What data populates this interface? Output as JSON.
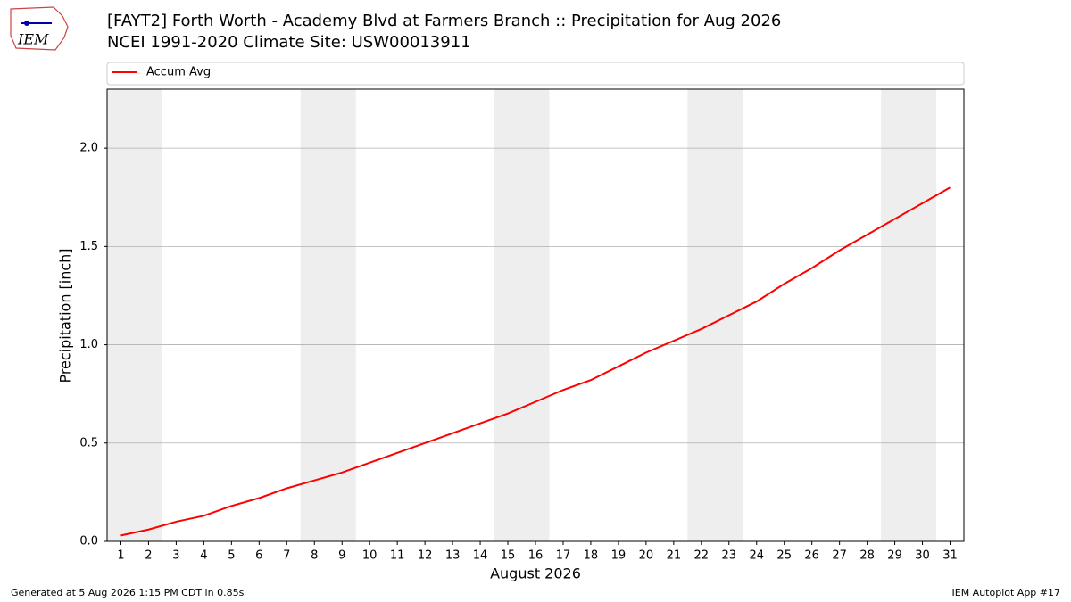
{
  "logo_text": "IEM",
  "footer_left": "Generated at 5 Aug 2026 1:15 PM CDT in 0.85s",
  "footer_right": "IEM Autoplot App #17",
  "chart_data": {
    "type": "line",
    "title": "[FAYT2] Forth Worth - Academy Blvd at Farmers Branch :: Precipitation for Aug 2026",
    "subtitle": "NCEI 1991-2020 Climate Site: USW00013911",
    "x_label": "August 2026",
    "y_label": "Precipitation [inch]",
    "x": [
      1,
      2,
      3,
      4,
      5,
      6,
      7,
      8,
      9,
      10,
      11,
      12,
      13,
      14,
      15,
      16,
      17,
      18,
      19,
      20,
      21,
      22,
      23,
      24,
      25,
      26,
      27,
      28,
      29,
      30,
      31
    ],
    "series": [
      {
        "name": "Accum Avg",
        "color": "#ff0000",
        "values": [
          0.03,
          0.06,
          0.1,
          0.13,
          0.18,
          0.22,
          0.27,
          0.31,
          0.35,
          0.4,
          0.45,
          0.5,
          0.55,
          0.6,
          0.65,
          0.71,
          0.77,
          0.82,
          0.89,
          0.96,
          1.02,
          1.08,
          1.15,
          1.22,
          1.31,
          1.39,
          1.48,
          1.56,
          1.64,
          1.72,
          1.8
        ]
      }
    ],
    "shaded_spans": [
      [
        0.5,
        2.5
      ],
      [
        7.5,
        9.5
      ],
      [
        14.5,
        16.5
      ],
      [
        21.5,
        23.5
      ],
      [
        28.5,
        30.5
      ]
    ],
    "shade_color": "#eeeeee",
    "xlim": [
      0.5,
      31.5
    ],
    "xticks": [
      1,
      2,
      3,
      4,
      5,
      6,
      7,
      8,
      9,
      10,
      11,
      12,
      13,
      14,
      15,
      16,
      17,
      18,
      19,
      20,
      21,
      22,
      23,
      24,
      25,
      26,
      27,
      28,
      29,
      30,
      31
    ],
    "ylim": [
      0,
      2.3
    ],
    "yticks": [
      {
        "value": 0,
        "label": "0.0"
      },
      0.5,
      {
        "value": 1,
        "label": "1.0"
      },
      1.5,
      {
        "value": 2,
        "label": "2.0"
      }
    ],
    "grid": true,
    "legend": "top"
  }
}
